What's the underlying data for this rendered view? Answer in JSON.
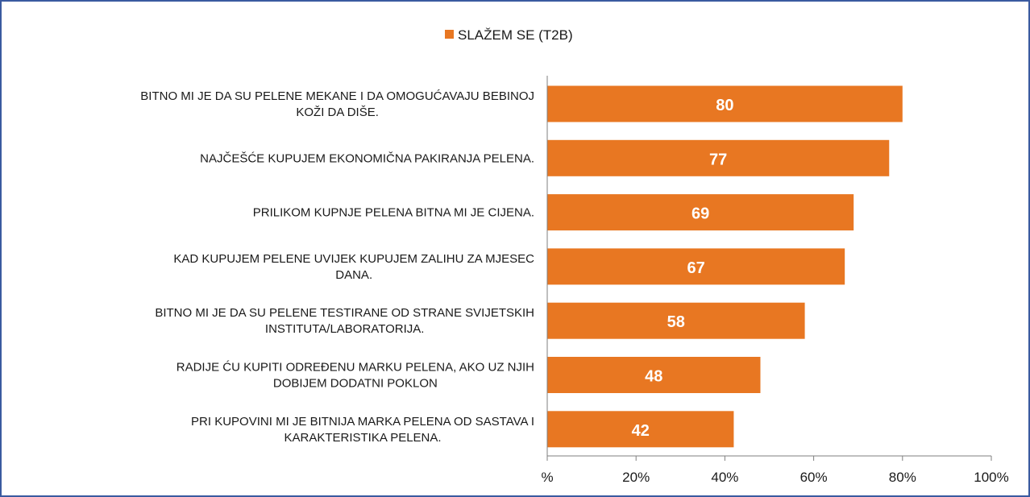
{
  "chart_data": {
    "type": "bar",
    "orientation": "horizontal",
    "legend_position": "top-center",
    "grid": false,
    "xlim": [
      0,
      100
    ],
    "x_ticks": [
      "%",
      "20%",
      "40%",
      "60%",
      "80%",
      "100%"
    ],
    "colors": {
      "bar": "#E87722",
      "axis": "#7f7f7f",
      "frame": "#3a5aa0"
    },
    "series": [
      {
        "name": "SLAŽEM SE (T2B)",
        "values": [
          80,
          77,
          69,
          67,
          58,
          48,
          42
        ]
      }
    ],
    "categories": [
      [
        "BITNO MI JE DA SU PELENE MEKANE I DA OMOGUĆAVAJU BEBINOJ",
        "KOŽI DA DIŠE."
      ],
      [
        "NAJČEŠĆE KUPUJEM EKONOMIČNA PAKIRANJA PELENA."
      ],
      [
        "PRILIKOM KUPNJE PELENA BITNA MI JE CIJENA."
      ],
      [
        "KAD KUPUJEM PELENE UVIJEK KUPUJEM ZALIHU ZA MJESEC",
        "DANA."
      ],
      [
        "BITNO MI JE DA SU PELENE TESTIRANE OD STRANE SVIJETSKIH",
        "INSTITUTA/LABORATORIJA."
      ],
      [
        "RADIJE ĆU KUPITI ODREĐENU MARKU PELENA, AKO UZ NJIH",
        "DOBIJEM DODATNI POKLON"
      ],
      [
        "PRI KUPOVINI MI JE BITNIJA MARKA PELENA OD SASTAVA I",
        "KARAKTERISTIKA PELENA."
      ]
    ],
    "data_labels": [
      "80",
      "77",
      "69",
      "67",
      "58",
      "48",
      "42"
    ]
  }
}
